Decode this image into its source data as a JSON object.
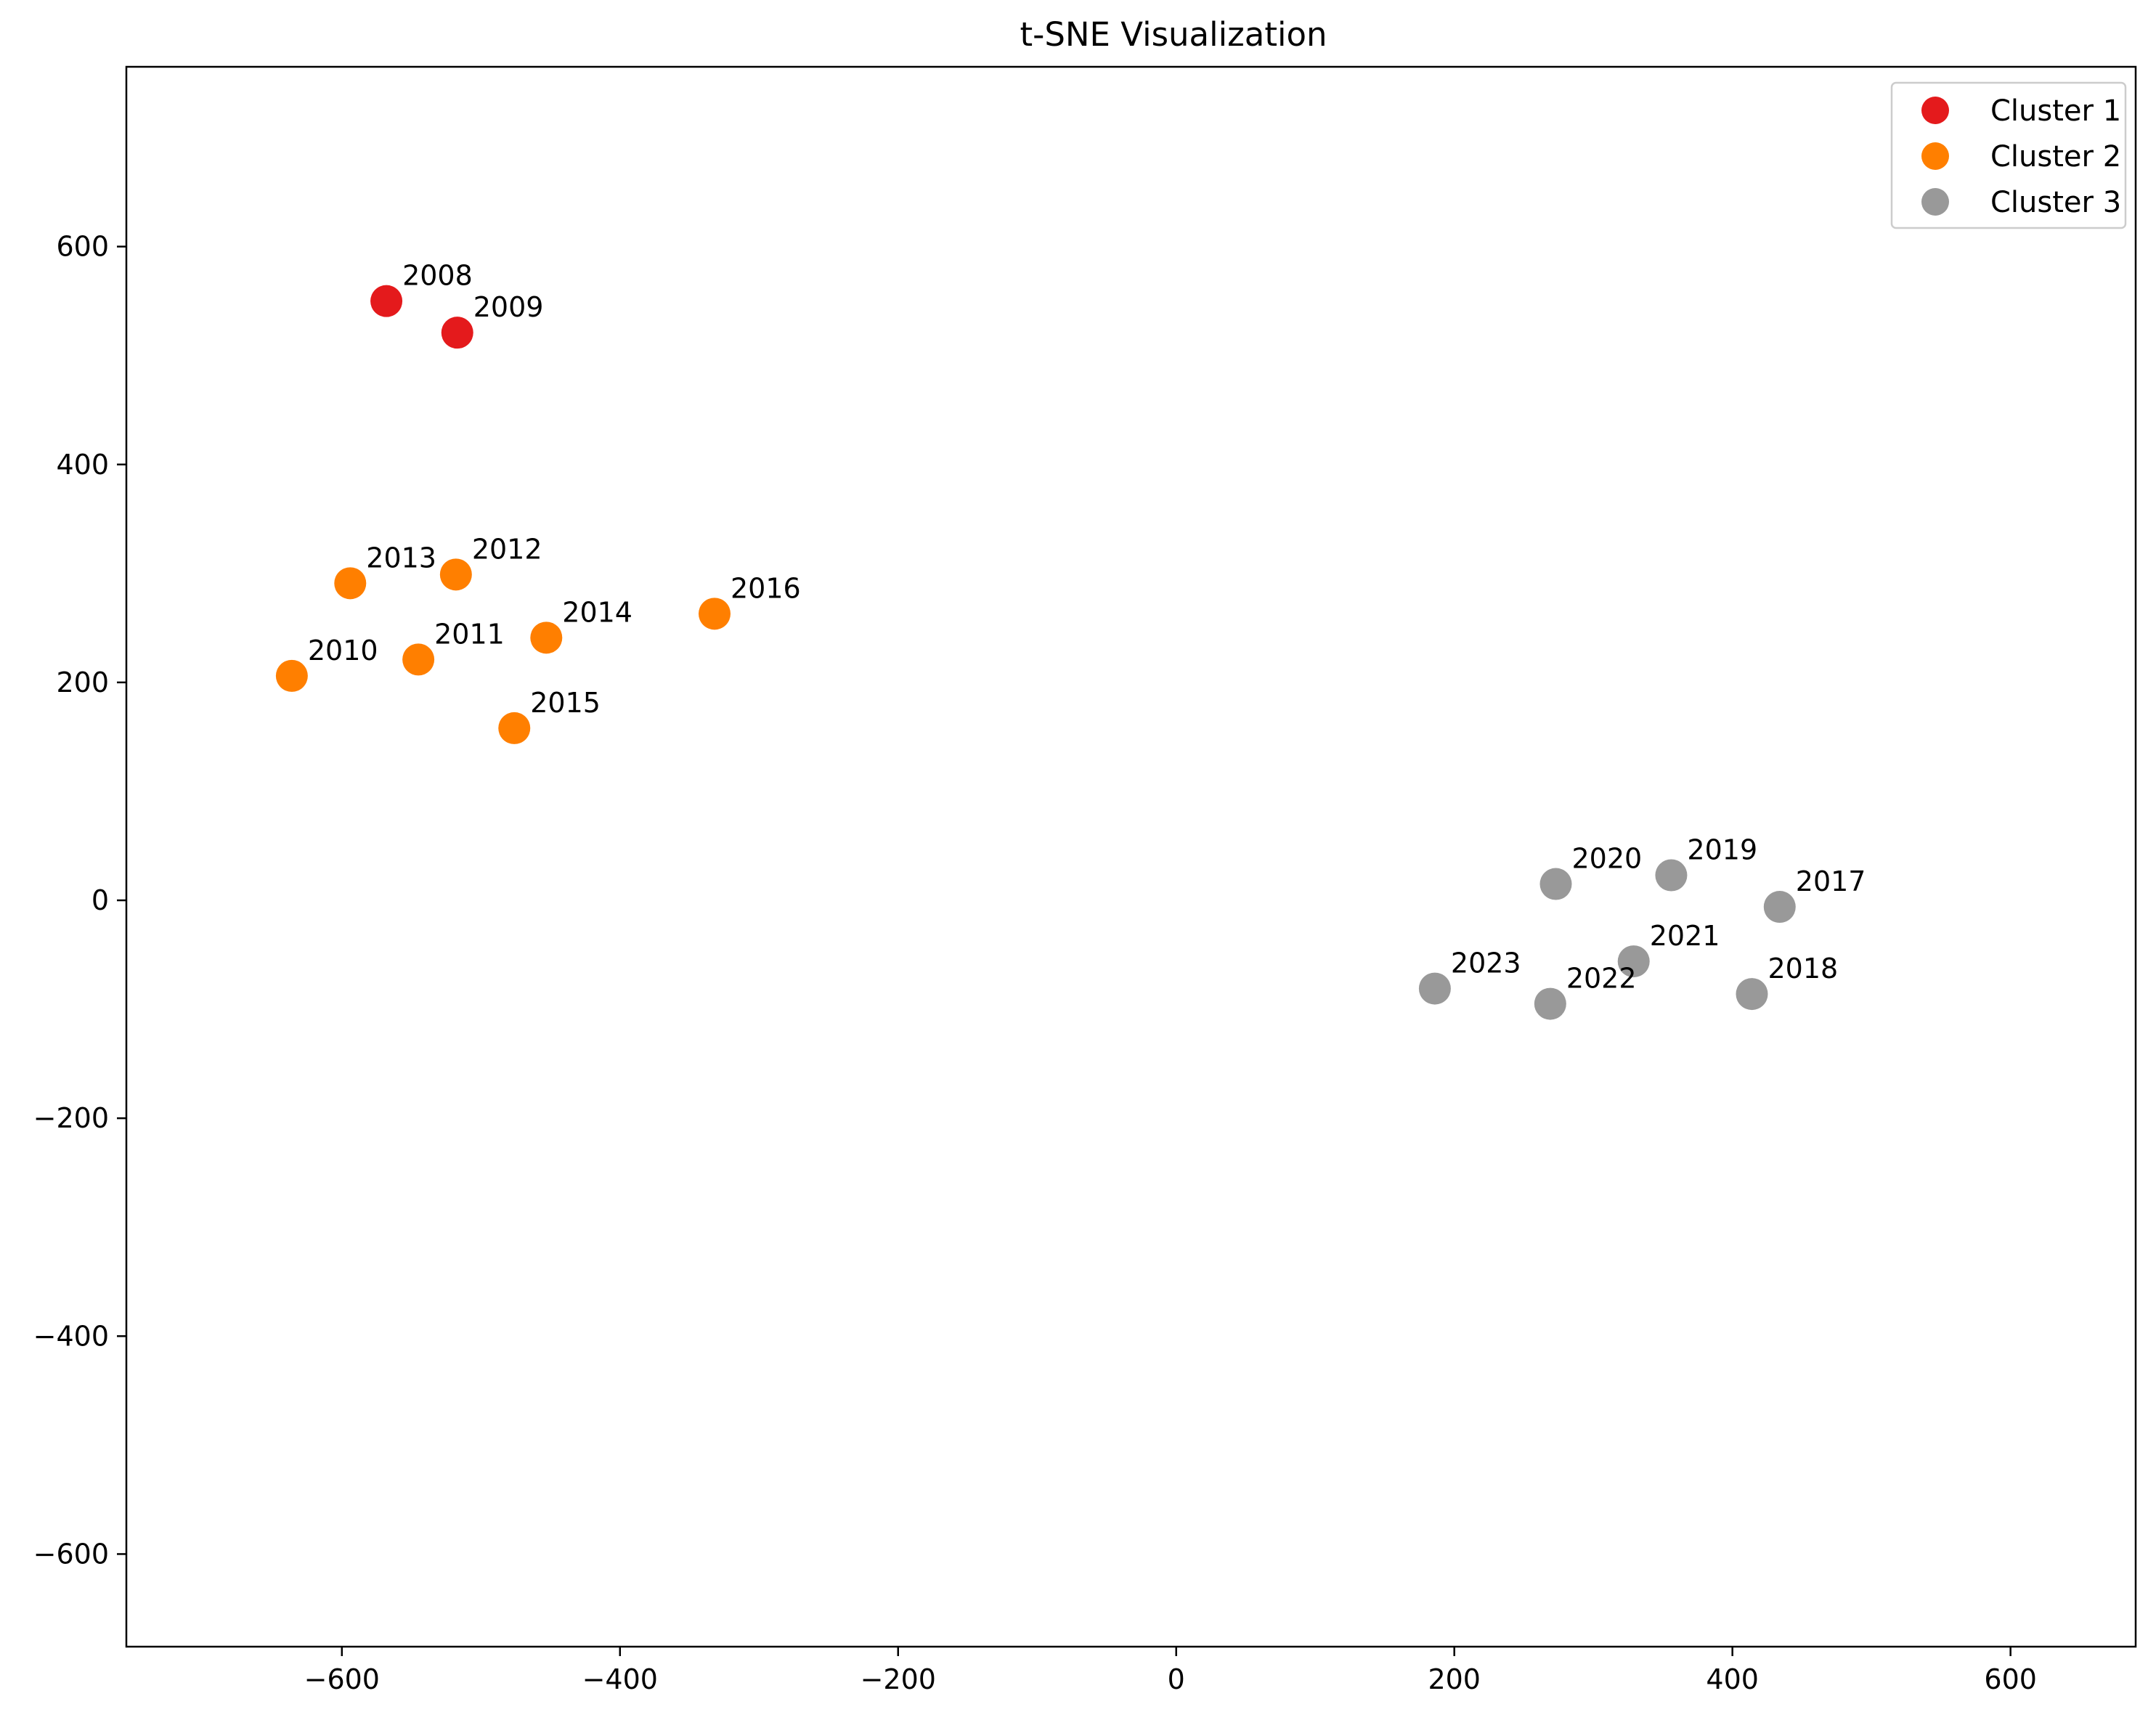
{
  "chart_data": {
    "type": "scatter",
    "title": "t-SNE Visualization",
    "xlabel": "",
    "ylabel": "",
    "xlim": [
      -755,
      690
    ],
    "ylim": [
      -685,
      765
    ],
    "xticks": [
      -600,
      -400,
      -200,
      0,
      200,
      400,
      600
    ],
    "yticks": [
      -600,
      -400,
      -200,
      0,
      200,
      400,
      600
    ],
    "xtick_labels": [
      "−600",
      "−400",
      "−200",
      "0",
      "200",
      "400",
      "600"
    ],
    "ytick_labels": [
      "−600",
      "−400",
      "−200",
      "0",
      "200",
      "400",
      "600"
    ],
    "grid": false,
    "legend_position": "top-right",
    "series": [
      {
        "name": "Cluster 1",
        "color": "#e41a1c",
        "points": [
          {
            "label": "2008",
            "x": -568,
            "y": 550
          },
          {
            "label": "2009",
            "x": -517,
            "y": 521
          }
        ]
      },
      {
        "name": "Cluster 2",
        "color": "#ff7f00",
        "points": [
          {
            "label": "2010",
            "x": -636,
            "y": 206
          },
          {
            "label": "2011",
            "x": -545,
            "y": 221
          },
          {
            "label": "2012",
            "x": -518,
            "y": 299
          },
          {
            "label": "2013",
            "x": -594,
            "y": 291
          },
          {
            "label": "2014",
            "x": -453,
            "y": 241
          },
          {
            "label": "2015",
            "x": -476,
            "y": 158
          },
          {
            "label": "2016",
            "x": -332,
            "y": 263
          }
        ]
      },
      {
        "name": "Cluster 3",
        "color": "#999999",
        "points": [
          {
            "label": "2017",
            "x": 434,
            "y": -6
          },
          {
            "label": "2018",
            "x": 414,
            "y": -86
          },
          {
            "label": "2019",
            "x": 356,
            "y": 23
          },
          {
            "label": "2020",
            "x": 273,
            "y": 15
          },
          {
            "label": "2021",
            "x": 329,
            "y": -56
          },
          {
            "label": "2022",
            "x": 269,
            "y": -95
          },
          {
            "label": "2023",
            "x": 186,
            "y": -81
          }
        ]
      }
    ]
  }
}
